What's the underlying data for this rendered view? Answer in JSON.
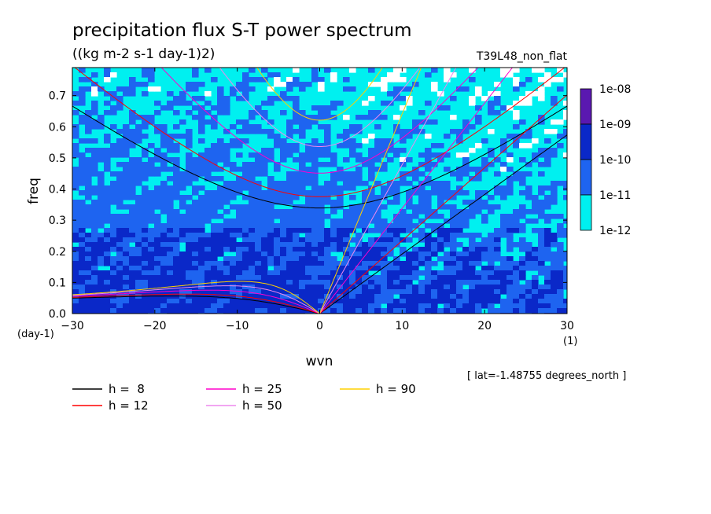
{
  "chart_data": {
    "type": "heatmap",
    "title": "precipitation flux S-T power spectrum",
    "subtitle": "((kg m-2 s-1 day-1)2)",
    "run_label": "T39L48_non_flat",
    "xlabel": "wvn",
    "ylabel": "freq",
    "x_unit": "(1)",
    "y_unit": "(day-1)",
    "xlim": [
      -30,
      30
    ],
    "ylim": [
      0,
      0.79
    ],
    "xticks": [
      "-30",
      "-20",
      "-10",
      "0",
      "10",
      "20",
      "30"
    ],
    "yticks": [
      "0.0",
      "0.1",
      "0.2",
      "0.3",
      "0.4",
      "0.5",
      "0.6",
      "0.7"
    ],
    "colorbar": {
      "labels": [
        "1e-08",
        "1e-09",
        "1e-10",
        "1e-11",
        "1e-12"
      ],
      "colors": [
        "#5a18b0",
        "#0a28c8",
        "#1e64f0",
        "#00f0f0"
      ]
    },
    "shade_colors": {
      "white": "#ffffff",
      "cyan": "#00f0f0",
      "blue": "#1e64f0",
      "navy": "#0a28c8"
    },
    "annotation": "[ lat=-1.48755 degrees_north ]",
    "dispersion_curves": [
      {
        "h_label": "h =  8",
        "h": 8,
        "color": "#000000"
      },
      {
        "h_label": "h = 12",
        "h": 12,
        "color": "#ff0000"
      },
      {
        "h_label": "h = 25",
        "h": 25,
        "color": "#ff00cc"
      },
      {
        "h_label": "h = 50",
        "h": 50,
        "color": "#ee88ee"
      },
      {
        "h_label": "h = 90",
        "h": 90,
        "color": "#ffd000"
      }
    ]
  }
}
